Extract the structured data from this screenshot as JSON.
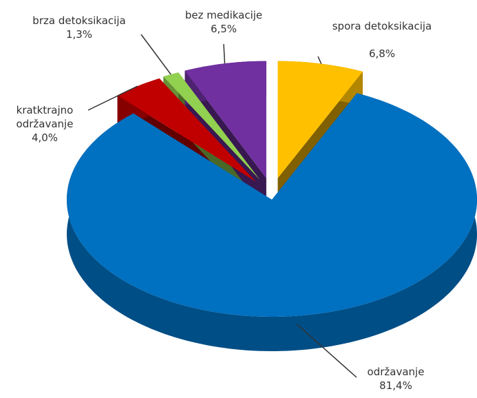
{
  "chart_data": {
    "type": "pie3d",
    "categories": [
      "spora detoksikacija",
      "održavanje",
      "kratktrajno održavanje",
      "brza detoksikacija",
      "bez medikacije"
    ],
    "values": [
      6.8,
      81.4,
      4.0,
      1.3,
      6.5
    ],
    "value_labels": [
      "6,8%",
      "81,4%",
      "4,0%",
      "1,3%",
      "6,5%"
    ],
    "colors": [
      "#FFC000",
      "#0070C0",
      "#C00000",
      "#92D050",
      "#7030A0"
    ]
  }
}
